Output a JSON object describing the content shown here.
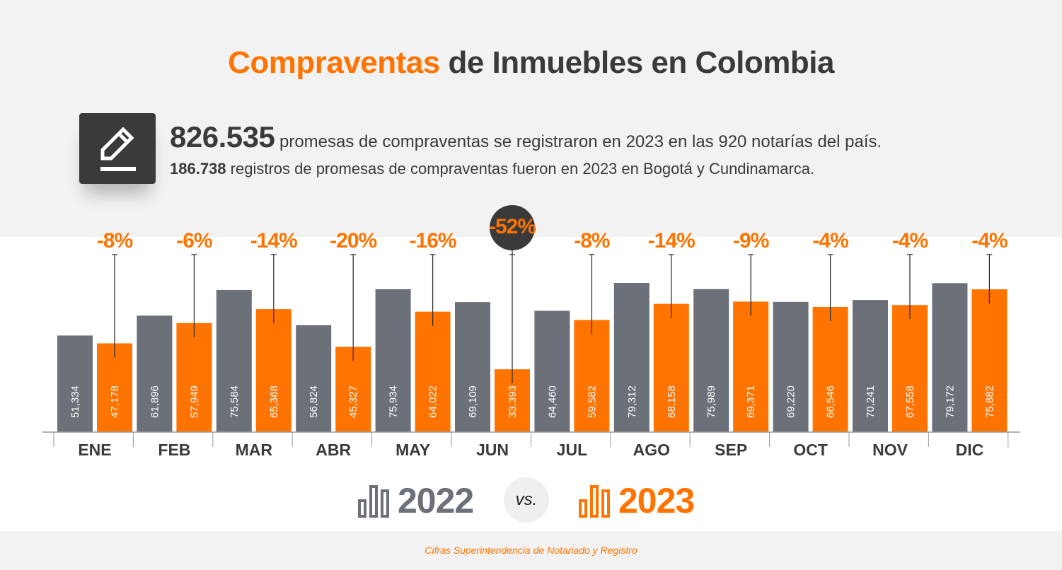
{
  "header": {
    "title_highlight": "Compraventas",
    "title_rest": " de Inmuebles en Colombia",
    "icon": "pencil-edit-icon",
    "stat1_value": "826.535",
    "stat1_text": " promesas de compraventas se registraron en 2023 en las 920 notarías del país.",
    "stat2_value": "186.738",
    "stat2_text": " registros de promesas de compraventas fueron en 2023 en Bogotá y Cundinamarca."
  },
  "chart_data": {
    "type": "bar",
    "categories": [
      "ENE",
      "FEB",
      "MAR",
      "ABR",
      "MAY",
      "JUN",
      "JUL",
      "AGO",
      "SEP",
      "OCT",
      "NOV",
      "DIC"
    ],
    "series": [
      {
        "name": "2022",
        "color": "#6b7079",
        "values": [
          51334,
          61896,
          75584,
          56824,
          75934,
          69109,
          64460,
          79312,
          75989,
          69220,
          70241,
          79172
        ]
      },
      {
        "name": "2023",
        "color": "#ff7300",
        "values": [
          47178,
          57949,
          65368,
          45327,
          64022,
          33393,
          59582,
          68158,
          69371,
          66546,
          67558,
          75882
        ]
      }
    ],
    "value_labels": {
      "2022": [
        "51,334",
        "61,896",
        "75,584",
        "56,824",
        "75,934",
        "69,109",
        "64,460",
        "79,312",
        "75,989",
        "69,220",
        "70,241",
        "79,172"
      ],
      "2023": [
        "47,178",
        "57,949",
        "65,368",
        "45,327",
        "64,022",
        "33,393",
        "59,582",
        "68,158",
        "69,371",
        "66,546",
        "67,558",
        "75,882"
      ]
    },
    "change_labels": [
      "-8%",
      "-6%",
      "-14%",
      "-20%",
      "-16%",
      "-52%",
      "-8%",
      "-14%",
      "-9%",
      "-4%",
      "-4%",
      "-4%"
    ],
    "highlighted_change_index": 5,
    "ylim": [
      0,
      80000
    ],
    "grid": false,
    "legend_placement": "bottom"
  },
  "legend": {
    "year1": "2022",
    "vs": "VS.",
    "year2": "2023",
    "year1_icon": "bar-chart-icon",
    "year2_icon": "bar-chart-icon"
  },
  "footer": {
    "source": "Cifras Superintendencia de Notariado y Registro"
  }
}
